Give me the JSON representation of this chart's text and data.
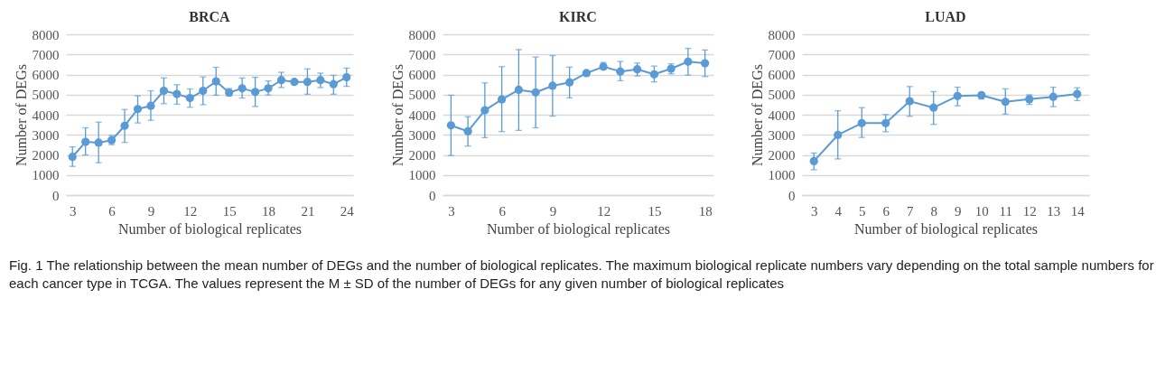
{
  "chart_data": [
    {
      "type": "line",
      "title": "BRCA",
      "xlabel": "Number of biological replicates",
      "ylabel": "Number of DEGs",
      "x": [
        3,
        4,
        5,
        6,
        7,
        8,
        9,
        10,
        11,
        12,
        13,
        14,
        15,
        16,
        17,
        18,
        19,
        20,
        21,
        22,
        23,
        24
      ],
      "xlim": [
        2.5,
        24.5
      ],
      "xticks": [
        3,
        6,
        9,
        12,
        15,
        18,
        21,
        24
      ],
      "ylim": [
        0,
        8000
      ],
      "yticks": [
        0,
        1000,
        2000,
        3000,
        4000,
        5000,
        6000,
        7000,
        8000
      ],
      "grid": "y",
      "marker": "circle",
      "line_style": "solid",
      "series": [
        {
          "color": "#5b9bd5",
          "values": [
            1900,
            2650,
            2610,
            2730,
            3450,
            4280,
            4440,
            5190,
            5030,
            4830,
            5190,
            5660,
            5100,
            5310,
            5130,
            5310,
            5720,
            5630,
            5630,
            5720,
            5520,
            5860
          ],
          "errors": [
            [
              1430,
              2400
            ],
            [
              2000,
              3350
            ],
            [
              1610,
              3630
            ],
            [
              2510,
              2970
            ],
            [
              2620,
              4260
            ],
            [
              3590,
              4940
            ],
            [
              3720,
              5190
            ],
            [
              4550,
              5830
            ],
            [
              4520,
              5490
            ],
            [
              4370,
              5280
            ],
            [
              4500,
              5880
            ],
            [
              4970,
              6360
            ],
            [
              4940,
              5300
            ],
            [
              4830,
              5830
            ],
            [
              4410,
              5860
            ],
            [
              4980,
              5680
            ],
            [
              5350,
              6110
            ],
            null,
            [
              5020,
              6280
            ],
            [
              5350,
              6070
            ],
            [
              5020,
              5960
            ],
            [
              5410,
              6320
            ]
          ]
        }
      ]
    },
    {
      "type": "line",
      "title": "KIRC",
      "xlabel": "Number of biological replicates",
      "ylabel": "Number of DEGs",
      "x": [
        3,
        4,
        5,
        6,
        7,
        8,
        9,
        10,
        11,
        12,
        13,
        14,
        15,
        16,
        17,
        18
      ],
      "xlim": [
        2.5,
        18.5
      ],
      "xticks": [
        3,
        6,
        9,
        12,
        15,
        18
      ],
      "ylim": [
        0,
        8000
      ],
      "yticks": [
        0,
        1000,
        2000,
        3000,
        4000,
        5000,
        6000,
        7000,
        8000
      ],
      "grid": "y",
      "marker": "circle",
      "line_style": "solid",
      "series": [
        {
          "color": "#5b9bd5",
          "values": [
            3470,
            3170,
            4220,
            4760,
            5240,
            5110,
            5440,
            5610,
            6070,
            6390,
            6150,
            6260,
            6010,
            6290,
            6640,
            6560
          ],
          "errors": [
            [
              1970,
              4970
            ],
            [
              2440,
              3900
            ],
            [
              2860,
              5580
            ],
            [
              3160,
              6390
            ],
            [
              3220,
              7240
            ],
            [
              3350,
              6870
            ],
            [
              3930,
              6940
            ],
            [
              4840,
              6370
            ],
            null,
            [
              6260,
              6600
            ],
            [
              5690,
              6650
            ],
            [
              5930,
              6570
            ],
            [
              5630,
              6420
            ],
            [
              6030,
              6530
            ],
            [
              5970,
              7300
            ],
            [
              5900,
              7220
            ]
          ]
        }
      ]
    },
    {
      "type": "line",
      "title": "LUAD",
      "xlabel": "Number of biological replicates",
      "ylabel": "Number of DEGs",
      "x": [
        3,
        4,
        5,
        6,
        7,
        8,
        9,
        10,
        11,
        12,
        13,
        14
      ],
      "xlim": [
        2.5,
        14.5
      ],
      "xticks": [
        3,
        4,
        5,
        6,
        7,
        8,
        9,
        10,
        11,
        12,
        13,
        14
      ],
      "ylim": [
        0,
        8000
      ],
      "yticks": [
        0,
        1000,
        2000,
        3000,
        4000,
        5000,
        6000,
        7000,
        8000
      ],
      "grid": "y",
      "marker": "circle",
      "line_style": "solid",
      "annotations": [
        "Fig. 1 The relationship between the mean number of DEGs and the number of biological replicates. The maximum biological replicate numbers vary depending on the total sample numbers for each cancer type in TCGA. The values represent the M ± SD of the number of DEGs for any given number of biological replicates"
      ],
      "series": [
        {
          "color": "#5b9bd5",
          "values": [
            1690,
            2990,
            3580,
            3580,
            4670,
            4350,
            4930,
            4970,
            4640,
            4770,
            4890,
            5030
          ],
          "errors": [
            [
              1260,
              2090
            ],
            [
              1800,
              4200
            ],
            [
              2870,
              4350
            ],
            [
              3150,
              4010
            ],
            [
              3920,
              5400
            ],
            [
              3520,
              5150
            ],
            [
              4440,
              5370
            ],
            [
              4780,
              5090
            ],
            [
              4030,
              5290
            ],
            [
              4510,
              4990
            ],
            [
              4400,
              5370
            ],
            [
              4700,
              5340
            ]
          ]
        }
      ]
    }
  ]
}
